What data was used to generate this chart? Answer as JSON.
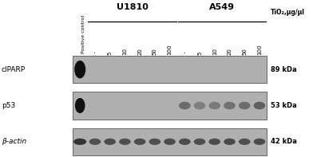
{
  "title_groups": [
    "U1810",
    "A549"
  ],
  "tio2_label": "TiO₂,μg/μl",
  "lane_labels": [
    "Positive\ncontrol",
    ".",
    "5",
    "10",
    "20",
    "50",
    "100",
    ".",
    "5",
    "10",
    "20",
    "50",
    "100"
  ],
  "row_labels": [
    "cIPARP",
    "p53",
    "β-actin"
  ],
  "kda_labels": [
    "89 kDa",
    "53 kDa",
    "42 kDa"
  ],
  "background_color": "#ffffff",
  "blot_bg": "#b0b0b0",
  "band_dark": "#111111",
  "band_medium": "#444444",
  "band_light": "#777777",
  "n_lanes": 13,
  "n_rows": 3,
  "fig_width": 3.92,
  "fig_height": 1.97,
  "dpi": 100
}
